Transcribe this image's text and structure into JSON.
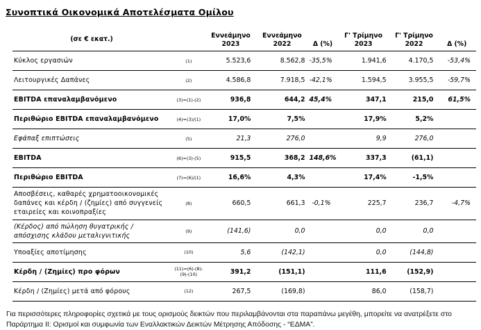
{
  "title": "Συνοπτικά Οικονομικά Αποτελέσματα Ομίλου",
  "table": {
    "unit_label": "(σε € εκατ.)",
    "col_headers": [
      {
        "line1": "Εννεάμηνο",
        "line2": "2023"
      },
      {
        "line1": "Εννεάμηνο",
        "line2": "2022"
      },
      {
        "line1": "Δ (%)",
        "line2": ""
      },
      {
        "line1": "Γ' Τρίμηνο",
        "line2": "2023"
      },
      {
        "line1": "Γ' Τρίμηνο",
        "line2": "2022"
      },
      {
        "line1": "Δ (%)",
        "line2": ""
      }
    ],
    "rows": [
      {
        "label": "Κύκλος εργασιών",
        "formula": "(1)",
        "values": [
          "5.523,6",
          "8.562,8",
          "-35,5%",
          "1.941,6",
          "4.170,5",
          "-53,4%"
        ],
        "bold": false,
        "italic": false,
        "values_italic": false
      },
      {
        "label": "Λειτουργικές Δαπάνες",
        "formula": "(2)",
        "values": [
          "4.586,8",
          "7.918,5",
          "-42,1%",
          "1.594,5",
          "3.955,5",
          "-59,7%"
        ],
        "bold": false,
        "italic": false,
        "values_italic": false
      },
      {
        "label": "EBITDA επαναλαμβανόμενο",
        "formula": "(3)=(1)-(2)",
        "values": [
          "936,8",
          "644,2",
          "45,4%",
          "347,1",
          "215,0",
          "61,5%"
        ],
        "bold": true,
        "italic": false,
        "values_italic": false
      },
      {
        "label": "Περιθώριο EBITDA επαναλαμβανόμενο",
        "formula": "(4)=(3)/(1)",
        "values": [
          "17,0%",
          "7,5%",
          "",
          "17,9%",
          "5,2%",
          ""
        ],
        "bold": true,
        "italic": false,
        "values_italic": false
      },
      {
        "label": "Εφάπαξ επιπτώσεις",
        "formula": "(5)",
        "values": [
          "21,3",
          "276,0",
          "",
          "9,9",
          "276,0",
          ""
        ],
        "bold": false,
        "italic": true,
        "values_italic": true
      },
      {
        "label": "EBITDA",
        "formula": "(6)=(3)-(5)",
        "values": [
          "915,5",
          "368,2",
          "148,6%",
          "337,3",
          "(61,1)",
          ""
        ],
        "bold": true,
        "italic": false,
        "values_italic": false
      },
      {
        "label": "Περιθώριο EBITDA",
        "formula": "(7)=(6)/(1)",
        "values": [
          "16,6%",
          "4,3%",
          "",
          "17,4%",
          "-1,5%",
          ""
        ],
        "bold": true,
        "italic": false,
        "values_italic": false
      },
      {
        "label": "Αποσβέσεις, καθαρές χρηματοοικονομικές δαπάνες και κέρδη / (ζημίες) από συγγενείς εταιρείες και κοινοπραξίες",
        "formula": "(8)",
        "values": [
          "660,5",
          "661,3",
          "-0,1%",
          "225,7",
          "236,7",
          "-4,7%"
        ],
        "bold": false,
        "italic": false,
        "values_italic": false
      },
      {
        "label": "(Κέρδος) από πώληση θυγατρικής / απόσχισης κλάδου μεταλιγνιτικής",
        "formula": "(9)",
        "values": [
          "(141,6)",
          "0,0",
          "",
          "0,0",
          "0,0",
          ""
        ],
        "bold": false,
        "italic": true,
        "values_italic": true
      },
      {
        "label": "Υποαξίες αποτίμησης",
        "formula": "(10)",
        "values": [
          "5,6",
          "(142,1)",
          "",
          "0,0",
          "(144,8)",
          ""
        ],
        "bold": false,
        "italic": false,
        "values_italic": true
      },
      {
        "label": "Κέρδη / (Ζημίες) προ φόρων",
        "formula": "(11)=(6)-(8)-(9)-(10)",
        "values": [
          "391,2",
          "(151,1)",
          "",
          "111,6",
          "(152,9)",
          ""
        ],
        "bold": true,
        "italic": false,
        "values_italic": false
      },
      {
        "label": "Κέρδη / (Ζημίες) μετά από φόρους",
        "formula": "(12)",
        "values": [
          "267,5",
          "(169,8)",
          "",
          "86,0",
          "(158,7)",
          ""
        ],
        "bold": false,
        "italic": false,
        "values_italic": false
      }
    ]
  },
  "footnote": "Για περισσότερες πληροφορίες σχετικά με τους ορισμούς δεικτών που περιλαμβάνονται στα παραπάνω μεγέθη, μπορείτε να ανατρέξετε στο Παράρτημα ΙΙ: Ορισμοί και συμφωνία των Εναλλακτικών Δεικτών Μέτρησης Απόδοσης - “ΕΔΜΑ”."
}
